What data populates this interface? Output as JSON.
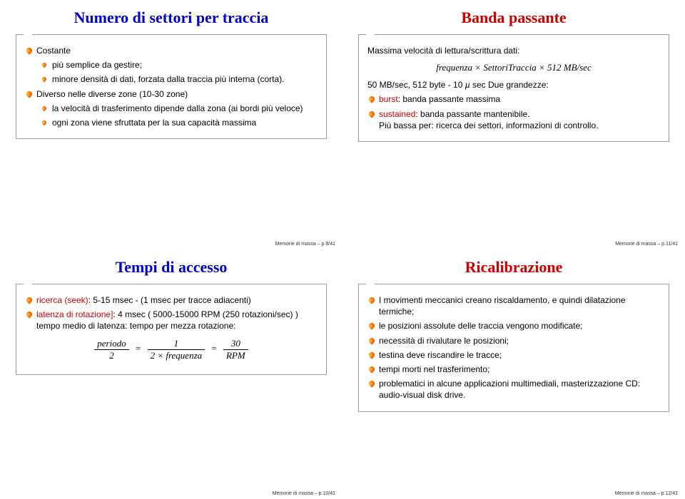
{
  "slides": {
    "tl": {
      "title": "Numero di settori per traccia",
      "title_color": "#0000cc",
      "group1_lead": "Costante",
      "group1_items": [
        "più semplice da gestire;",
        "minore densità di dati, forzata dalla traccia più interna (corta)."
      ],
      "group2_lead": "Diverso nelle diverse zone (10-30 zone)",
      "group2_items": [
        "la velocità di trasferimento dipende dalla zona (ai bordi più veloce)",
        "ogni zona viene sfruttata per la sua capacità massima"
      ],
      "footer": "Memorie di massa – p.9/41"
    },
    "tr": {
      "title": "Banda passante",
      "title_color": "#cc0000",
      "lead": "Massima velocità di lettura/scrittura dati:",
      "formula": "frequenza × SettoriTraccia × 512  MB/sec",
      "line2_a": "50 MB/sec, 512 byte - 10 ",
      "line2_mu": "µ",
      "line2_b": " sec Due grandezze:",
      "item1_red": "burst",
      "item1_rest": ": banda passante massima",
      "item2_red": "sustained",
      "item2_rest": ": banda passante mantenibile.",
      "item2_tail": "Più bassa per: ricerca dei settori, informazioni di controllo.",
      "footer": "Memorie di massa – p.11/41"
    },
    "bl": {
      "title": "Tempi di accesso",
      "title_color": "#0000cc",
      "item1_red": "ricerca (seek)",
      "item1_rest": ": 5-15 msec - (1 msec per tracce adiacenti)",
      "item2_red": "latenza di rotazione]",
      "item2_rest": ": 4 msec ( 5000-15000 RPM (250 rotazioni/sec) )",
      "item2_tail": "tempo medio di latenza: tempo per mezza rotazione:",
      "frac1_num": "periodo",
      "frac1_den": "2",
      "frac2_num": "1",
      "frac2_den": "2 × frequenza",
      "frac3_num": "30",
      "frac3_den": "RPM",
      "footer": "Memorie di massa – p.10/41"
    },
    "br": {
      "title": "Ricalibrazione",
      "title_color": "#cc0000",
      "items": [
        "I movimenti meccanici creano riscaldamento, e quindi dilatazione termiche;",
        "le posizioni assolute delle traccia vengono modificate;",
        "necessità di rivalutare le posizioni;",
        "testina deve riscandire le tracce;",
        "tempi morti nel trasferimento;",
        "problematici in alcune applicazioni multimediali, masterizzazione CD: audio-visual disk drive."
      ],
      "footer": "Memorie di massa – p.12/41"
    }
  },
  "colors": {
    "red": "#cc0000",
    "blue": "#0000cc",
    "text": "#000000",
    "border": "#999999",
    "background": "#ffffff"
  },
  "typography": {
    "title_fontsize": 22,
    "body_fontsize": 12,
    "footer_fontsize": 7,
    "title_family": "Times New Roman",
    "body_family": "Arial"
  }
}
